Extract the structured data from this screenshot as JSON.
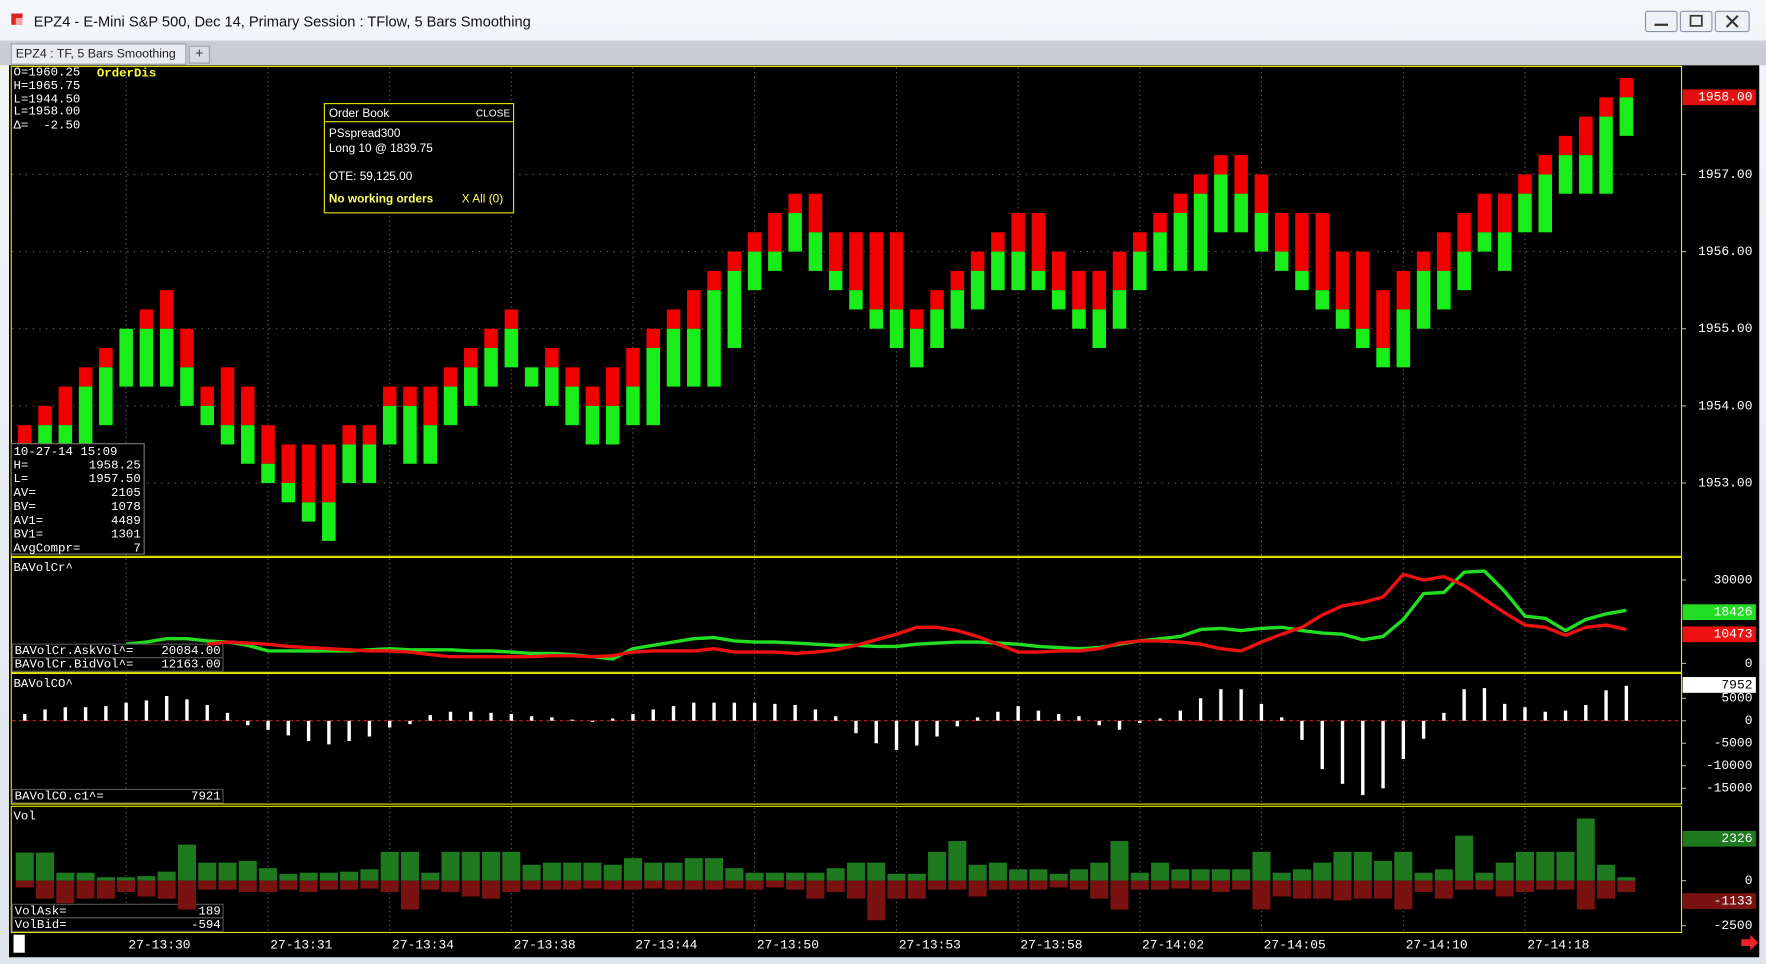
{
  "window": {
    "title": "EPZ4 - E-Mini S&P 500, Dec 14,  Primary Session : TFlow, 5 Bars Smoothing",
    "tab": "EPZ4 : TF, 5 Bars Smoothing",
    "new_tab": "+"
  },
  "chart_data": [
    {
      "type": "tflow",
      "ohlc": [
        "O=1960.25",
        "H=1965.75",
        "L=1944.50",
        "L=1958.00",
        "Δ=  -2.50"
      ],
      "study": "OrderDis",
      "order_book": {
        "title": "Order Book",
        "close": "CLOSE",
        "account": "PSspread300",
        "position": "Long 10 @ 1839.75",
        "ote": "OTE: 59,125.00",
        "working": "No working orders",
        "cancel": "X All (0)"
      },
      "info": {
        "time": "10-27-14 15:09",
        "rows": [
          [
            "H=",
            "1958.25"
          ],
          [
            "L=",
            "1957.50"
          ],
          [
            "AV=",
            "2105"
          ],
          [
            "BV=",
            "1078"
          ],
          [
            "AV1=",
            "4489"
          ],
          [
            "BV1=",
            "1301"
          ],
          [
            "AvgCompr=",
            "7"
          ]
        ]
      },
      "ask_color": "#f20000",
      "bid_color": "#1aee1a",
      "highs": [
        1953.75,
        1954,
        1954.25,
        1954.5,
        1954.75,
        1955,
        1955.25,
        1955.5,
        1955,
        1954.25,
        1954.5,
        1954.25,
        1953.75,
        1953.5,
        1953.5,
        1953.5,
        1953.75,
        1953.75,
        1954.25,
        1954.25,
        1954.25,
        1954.5,
        1954.75,
        1955,
        1955.25,
        1954.5,
        1954.75,
        1954.5,
        1954.25,
        1954.5,
        1954.75,
        1955,
        1955.25,
        1955.5,
        1955.75,
        1956,
        1956.25,
        1956.5,
        1956.75,
        1956.75,
        1956.25,
        1956.25,
        1956.25,
        1956.25,
        1955.25,
        1955.5,
        1955.75,
        1956,
        1956.25,
        1956.5,
        1956.5,
        1956,
        1955.75,
        1955.75,
        1956,
        1956.25,
        1956.5,
        1956.75,
        1957,
        1957.25,
        1957.25,
        1957,
        1956.5,
        1956.5,
        1956.5,
        1956,
        1956,
        1955.5,
        1955.75,
        1956,
        1956.25,
        1956.5,
        1956.75,
        1956.75,
        1957,
        1957.25,
        1957.5,
        1957.75,
        1958,
        1958.25
      ],
      "splits": [
        1953.5,
        1953.75,
        1953.75,
        1954.25,
        1954.5,
        1955,
        1955,
        1955,
        1954.5,
        1954,
        1953.75,
        1953.75,
        1953.25,
        1953,
        1952.75,
        1952.75,
        1953.5,
        1953.5,
        1954,
        1954,
        1953.75,
        1954.25,
        1954.5,
        1954.75,
        1955,
        1954.5,
        1954.5,
        1954.25,
        1954,
        1954,
        1954.25,
        1954.75,
        1955,
        1955,
        1955.5,
        1955.75,
        1956,
        1956,
        1956.5,
        1956.25,
        1955.75,
        1955.5,
        1955.25,
        1955.25,
        1955,
        1955.25,
        1955.5,
        1955.75,
        1956,
        1956,
        1955.75,
        1955.5,
        1955.25,
        1955.25,
        1955.5,
        1956,
        1956.25,
        1956.5,
        1956.75,
        1957,
        1956.75,
        1956.5,
        1956,
        1955.75,
        1955.5,
        1955.25,
        1955,
        1954.75,
        1955.25,
        1955.75,
        1955.75,
        1956,
        1956.25,
        1956.25,
        1956.75,
        1957,
        1957.25,
        1957.25,
        1957.75,
        1958
      ],
      "lows": [
        1953.5,
        1953.5,
        1953.5,
        1953.5,
        1953.75,
        1954.25,
        1954.25,
        1954.25,
        1954,
        1953.75,
        1953.5,
        1953.25,
        1953,
        1952.75,
        1952.5,
        1952.25,
        1953,
        1953,
        1953.5,
        1953.25,
        1953.25,
        1953.75,
        1954,
        1954.25,
        1954.5,
        1954.25,
        1954,
        1953.75,
        1953.5,
        1953.5,
        1953.75,
        1953.75,
        1954.25,
        1954.25,
        1954.25,
        1954.75,
        1955.5,
        1955.75,
        1956,
        1955.75,
        1955.5,
        1955.25,
        1955,
        1954.75,
        1954.5,
        1954.75,
        1955,
        1955.25,
        1955.5,
        1955.5,
        1955.5,
        1955.25,
        1955,
        1954.75,
        1955,
        1955.5,
        1955.75,
        1955.75,
        1955.75,
        1956.25,
        1956.25,
        1956,
        1955.75,
        1955.5,
        1955.25,
        1955,
        1954.75,
        1954.5,
        1954.5,
        1955,
        1955.25,
        1955.5,
        1956,
        1955.75,
        1956.25,
        1956.25,
        1956.75,
        1956.75,
        1956.75,
        1957.5
      ],
      "ylim": [
        1952.05,
        1958.4
      ],
      "yticks": [
        {
          "value": 1953,
          "label": "1953.00"
        },
        {
          "value": 1954,
          "label": "1954.00"
        },
        {
          "value": 1955,
          "label": "1955.00"
        },
        {
          "value": 1956,
          "label": "1956.00"
        },
        {
          "value": 1957,
          "label": "1957.00"
        }
      ],
      "grid": true,
      "last": {
        "value": 1958,
        "label": "1958.00"
      },
      "last_color": "#e01010"
    },
    {
      "type": "line",
      "title": "BAVolCr^",
      "series": [
        {
          "name": "BAVolCr.AskVol^=",
          "color": "#22dd22",
          "readout": "20084.00",
          "axis_box": 18426,
          "values": [
            null,
            null,
            null,
            null,
            null,
            6900,
            7700,
            8900,
            8900,
            8100,
            7700,
            6500,
            4500,
            4500,
            4500,
            4500,
            4500,
            4900,
            5300,
            4900,
            4900,
            4900,
            4500,
            4500,
            4100,
            3600,
            3600,
            3200,
            2400,
            1600,
            5300,
            6500,
            7700,
            8900,
            9300,
            8100,
            7700,
            7700,
            7300,
            6900,
            6500,
            6500,
            6100,
            6100,
            6900,
            7300,
            7700,
            7700,
            7300,
            6900,
            6100,
            5700,
            5300,
            5700,
            6900,
            8100,
            8900,
            9700,
            12200,
            12600,
            11800,
            12600,
            13000,
            11800,
            10900,
            10500,
            8500,
            9700,
            15800,
            25100,
            25500,
            32800,
            33200,
            25900,
            17000,
            16200,
            11800,
            15800,
            17800,
            19100
          ]
        },
        {
          "name": "BAVolCr.BidVol^=",
          "color": "#ee1111",
          "readout": "12163.00",
          "axis_box": 10473,
          "values": [
            null,
            null,
            null,
            null,
            null,
            null,
            null,
            null,
            null,
            6900,
            7700,
            7300,
            6900,
            6100,
            5700,
            5300,
            4900,
            4500,
            4500,
            4100,
            3200,
            2400,
            2400,
            2400,
            2400,
            2400,
            2800,
            2800,
            2400,
            2800,
            4100,
            4500,
            4500,
            4500,
            5300,
            4100,
            4100,
            4100,
            3600,
            4100,
            4900,
            6500,
            8500,
            10500,
            13000,
            13000,
            11800,
            9700,
            6900,
            4100,
            4100,
            4500,
            4500,
            5300,
            7300,
            8100,
            8100,
            7700,
            6900,
            5300,
            4500,
            7700,
            10500,
            13000,
            17400,
            20700,
            21900,
            23900,
            32000,
            30000,
            31200,
            28000,
            23100,
            18200,
            13800,
            13000,
            10100,
            13000,
            13800,
            12200
          ]
        }
      ],
      "ylim": [
        -3200,
        38100
      ],
      "yticks": [
        0,
        30000
      ]
    },
    {
      "type": "bar",
      "title": "BAVolCO^",
      "color": "#ffffff",
      "readout_name": "BAVolCO.c1^=",
      "readout": 7921,
      "axis_box": 7952,
      "zero_line_color": "#d02020",
      "values": [
        1500,
        2500,
        3000,
        3000,
        3250,
        4000,
        4500,
        5500,
        4750,
        3500,
        1750,
        -1000,
        -2000,
        -3250,
        -4500,
        -5250,
        -4500,
        -3500,
        -1500,
        -750,
        1250,
        2000,
        2000,
        1750,
        1500,
        1000,
        750,
        250,
        -250,
        500,
        1500,
        2500,
        3250,
        4000,
        4000,
        4000,
        4000,
        3750,
        3500,
        2500,
        1000,
        -2750,
        -5000,
        -6500,
        -5500,
        -3500,
        -1250,
        750,
        2000,
        3250,
        2250,
        1500,
        1000,
        -1000,
        -2000,
        -500,
        500,
        2250,
        5000,
        7000,
        7000,
        3750,
        750,
        -4250,
        -10750,
        -14000,
        -16500,
        -15000,
        -8500,
        -4000,
        1750,
        7000,
        7250,
        3750,
        3000,
        2000,
        2250,
        3500,
        6750,
        7750
      ],
      "ylim": [
        -18500,
        10500
      ],
      "yticks": [
        -15000,
        -10000,
        -5000,
        0,
        5000
      ]
    },
    {
      "type": "bar",
      "title": "Vol",
      "categories": [
        null,
        null,
        null,
        null,
        null,
        "27-13:30",
        null,
        null,
        null,
        null,
        null,
        null,
        "27-13:31",
        null,
        null,
        null,
        null,
        null,
        "27-13:34",
        null,
        null,
        null,
        null,
        null,
        "27-13:38",
        null,
        null,
        null,
        null,
        null,
        "27-13:44",
        null,
        null,
        null,
        null,
        null,
        "27-13:50",
        null,
        null,
        null,
        null,
        null,
        null,
        "27-13:53",
        null,
        null,
        null,
        null,
        null,
        "27-13:58",
        null,
        null,
        null,
        null,
        null,
        "27-14:02",
        null,
        null,
        null,
        null,
        null,
        "27-14:05",
        null,
        null,
        null,
        null,
        null,
        null,
        "27-14:10",
        null,
        null,
        null,
        null,
        null,
        "27-14:18",
        null,
        null,
        null,
        null,
        null
      ],
      "series": [
        {
          "name": "VolAsk=",
          "color": "#1f7a1f",
          "readout": 189,
          "axis_box": 2326,
          "values": [
            1560,
            1560,
            440,
            440,
            190,
            190,
            250,
            500,
            2000,
            1000,
            1000,
            1100,
            690,
            375,
            440,
            440,
            500,
            630,
            1600,
            1600,
            440,
            1600,
            1600,
            1600,
            1600,
            880,
            1000,
            1000,
            1000,
            880,
            1250,
            1000,
            1000,
            1250,
            1250,
            690,
            440,
            440,
            440,
            440,
            690,
            1000,
            1000,
            380,
            380,
            1600,
            2200,
            880,
            1000,
            630,
            630,
            380,
            630,
            1000,
            2200,
            440,
            1000,
            630,
            630,
            630,
            630,
            1600,
            440,
            630,
            1000,
            1600,
            1600,
            1100,
            1600,
            440,
            630,
            2500,
            440,
            1000,
            1600,
            1600,
            1600,
            3450,
            880,
            190
          ]
        },
        {
          "name": "VolBid=",
          "color": "#7a1212",
          "readout": -594,
          "axis_box": -1133,
          "values": [
            -380,
            -1000,
            -1250,
            -1000,
            -1000,
            -630,
            -880,
            -1000,
            -1600,
            -500,
            -500,
            -630,
            -630,
            -500,
            -630,
            -500,
            -500,
            -440,
            -630,
            -1600,
            -500,
            -630,
            -880,
            -1000,
            -630,
            -500,
            -500,
            -500,
            -440,
            -500,
            -500,
            -440,
            -500,
            -500,
            -500,
            -440,
            -500,
            -380,
            -500,
            -1000,
            -630,
            -1000,
            -2200,
            -1000,
            -1000,
            -500,
            -500,
            -880,
            -500,
            -500,
            -500,
            -380,
            -500,
            -1000,
            -1600,
            -500,
            -500,
            -440,
            -500,
            -630,
            -500,
            -1600,
            -880,
            -1000,
            -1000,
            -1100,
            -1000,
            -1000,
            -1600,
            -630,
            -1000,
            -500,
            -500,
            -880,
            -630,
            -500,
            -500,
            -1600,
            -1000,
            -630
          ]
        }
      ],
      "ylim": [
        -2875,
        4125
      ],
      "yticks": [
        -2500,
        0
      ]
    }
  ]
}
